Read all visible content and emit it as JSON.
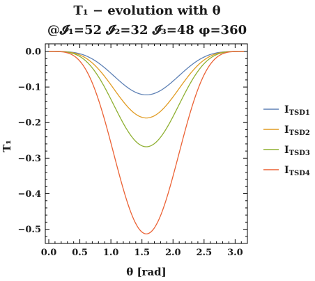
{
  "chart_data": {
    "type": "line",
    "title_line1": "T₁ − evolution with θ",
    "title_line2": "@𝓘₁=52 𝓘₂=32 𝓘₃=48 φ=360",
    "xlabel": "θ [rad]",
    "ylabel": "T₁",
    "xlim": [
      0,
      3.1416
    ],
    "ylim": [
      -0.54,
      0.02
    ],
    "xticks": [
      0.0,
      0.5,
      1.0,
      1.5,
      2.0,
      2.5,
      3.0
    ],
    "xtick_labels": [
      "0.0",
      "0.5",
      "1.0",
      "1.5",
      "2.0",
      "2.5",
      "3.0"
    ],
    "yticks": [
      0.0,
      -0.1,
      -0.2,
      -0.3,
      -0.4,
      -0.5
    ],
    "ytick_labels": [
      "0.0",
      "−0.1",
      "−0.2",
      "−0.3",
      "−0.4",
      "−0.5"
    ],
    "legend_position": "right",
    "series": [
      {
        "name_main": "I",
        "name_sub": "TSD1",
        "amplitude": -0.122,
        "color": "#5e81b5"
      },
      {
        "name_main": "I",
        "name_sub": "TSD2",
        "amplitude": -0.187,
        "color": "#e19c24"
      },
      {
        "name_main": "I",
        "name_sub": "TSD3",
        "amplitude": -0.268,
        "color": "#8fb032"
      },
      {
        "name_main": "I",
        "name_sub": "TSD4",
        "amplitude": -0.513,
        "color": "#eb6235"
      }
    ],
    "curve_shape": "amplitude * sin(theta)^4"
  }
}
